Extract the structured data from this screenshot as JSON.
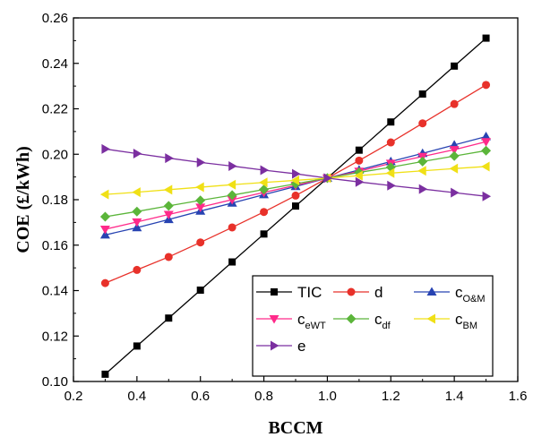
{
  "chart_data": {
    "type": "line",
    "xlabel": "BCCM",
    "ylabel": "COE (£/kWh)",
    "xlim": [
      0.2,
      1.6
    ],
    "ylim": [
      0.1,
      0.26
    ],
    "x_ticks": [
      "0.2",
      "0.4",
      "0.6",
      "0.8",
      "1.0",
      "1.2",
      "1.4",
      "1.6"
    ],
    "y_ticks": [
      "0.10",
      "0.12",
      "0.14",
      "0.16",
      "0.18",
      "0.20",
      "0.22",
      "0.24",
      "0.26"
    ],
    "x": [
      0.3,
      0.4,
      0.5,
      0.6,
      0.7,
      0.8,
      0.9,
      1.0,
      1.1,
      1.2,
      1.3,
      1.4,
      1.5
    ],
    "legend_position": "bottom-right",
    "series": [
      {
        "name": "TIC",
        "label_main": "TIC",
        "label_sub": "",
        "color": "#000000",
        "marker": "square",
        "values": [
          0.1032,
          0.1156,
          0.1279,
          0.1402,
          0.1526,
          0.1649,
          0.1772,
          0.1895,
          0.2018,
          0.2142,
          0.2265,
          0.2388,
          0.2511
        ]
      },
      {
        "name": "d",
        "label_main": "d",
        "label_sub": "",
        "color": "#e8312a",
        "marker": "circle",
        "values": [
          0.1433,
          0.1491,
          0.1548,
          0.1612,
          0.1678,
          0.1746,
          0.1818,
          0.1895,
          0.1972,
          0.2052,
          0.2136,
          0.2221,
          0.2305
        ]
      },
      {
        "name": "cO&M",
        "label_main": "c",
        "label_sub": "O&M",
        "color": "#2743b2",
        "marker": "triangle-up",
        "values": [
          0.1645,
          0.1677,
          0.1713,
          0.175,
          0.1785,
          0.1822,
          0.1858,
          0.1895,
          0.1931,
          0.1968,
          0.2004,
          0.2041,
          0.2078
        ]
      },
      {
        "name": "ceWT",
        "label_main": "c",
        "label_sub": "eWT",
        "color": "#ff2a8a",
        "marker": "triangle-down",
        "values": [
          0.167,
          0.1702,
          0.1735,
          0.1767,
          0.18,
          0.1832,
          0.1863,
          0.1895,
          0.1925,
          0.196,
          0.199,
          0.202,
          0.2055
        ]
      },
      {
        "name": "cdf",
        "label_main": "c",
        "label_sub": "df",
        "color": "#5bb53a",
        "marker": "diamond",
        "values": [
          0.1725,
          0.1748,
          0.1773,
          0.1797,
          0.182,
          0.1845,
          0.187,
          0.1895,
          0.192,
          0.1943,
          0.1968,
          0.1992,
          0.2016
        ]
      },
      {
        "name": "cBM",
        "label_main": "c",
        "label_sub": "BM",
        "color": "#f0e016",
        "marker": "triangle-left",
        "values": [
          0.1823,
          0.1833,
          0.1844,
          0.1855,
          0.1866,
          0.1876,
          0.1885,
          0.1895,
          0.1906,
          0.1917,
          0.1927,
          0.1937,
          0.1946
        ]
      },
      {
        "name": "e",
        "label_main": "e",
        "label_sub": "",
        "color": "#7b2fa0",
        "marker": "triangle-right",
        "values": [
          0.2023,
          0.2003,
          0.1983,
          0.1964,
          0.1948,
          0.193,
          0.1914,
          0.1895,
          0.1878,
          0.1862,
          0.1847,
          0.1831,
          0.1815
        ]
      }
    ]
  }
}
